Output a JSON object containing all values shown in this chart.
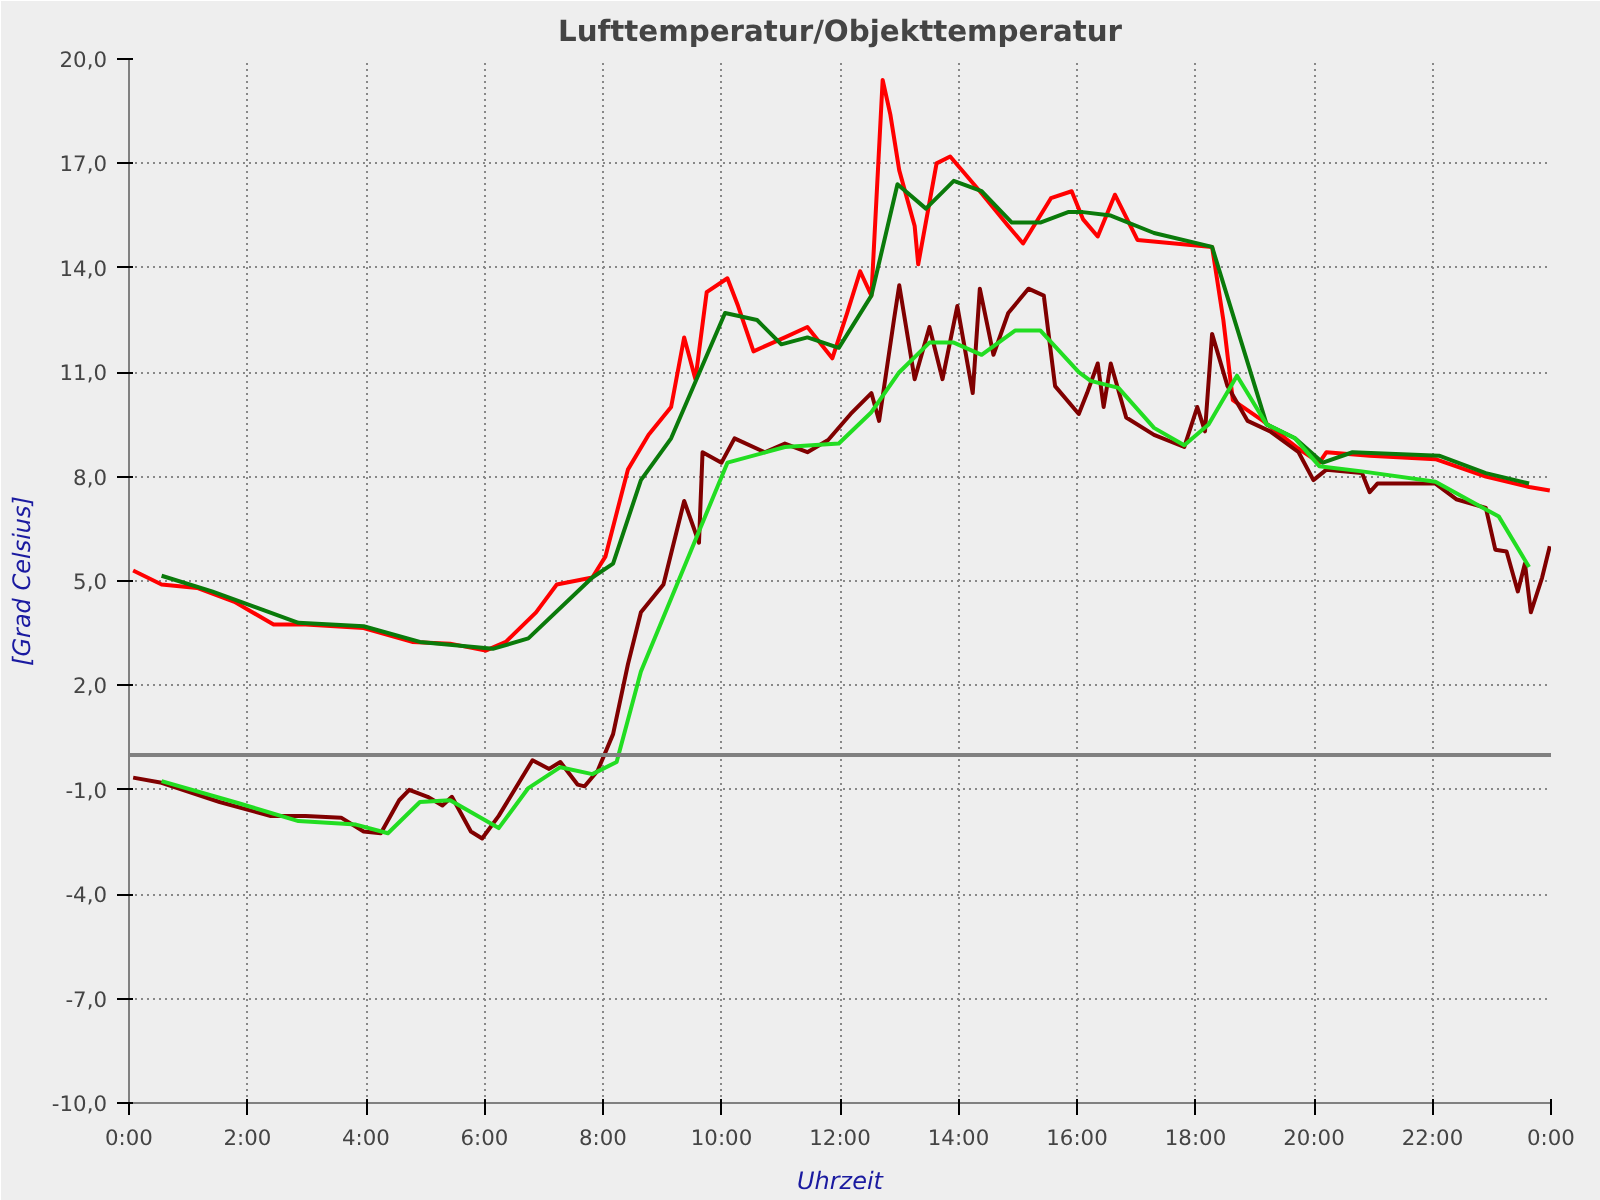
{
  "chart_data": {
    "type": "line",
    "title": "Lufttemperatur/Objekttemperatur",
    "xlabel": "Uhrzeit",
    "ylabel": "[Grad Celsius]",
    "xlim": [
      0,
      24
    ],
    "ylim": [
      -10,
      20
    ],
    "xticks": [
      {
        "value": 0,
        "label": "0:00"
      },
      {
        "value": 2,
        "label": "2:00"
      },
      {
        "value": 4,
        "label": "4:00"
      },
      {
        "value": 6,
        "label": "6:00"
      },
      {
        "value": 8,
        "label": "8:00"
      },
      {
        "value": 10,
        "label": "10:00"
      },
      {
        "value": 12,
        "label": "12:00"
      },
      {
        "value": 14,
        "label": "14:00"
      },
      {
        "value": 16,
        "label": "16:00"
      },
      {
        "value": 18,
        "label": "18:00"
      },
      {
        "value": 20,
        "label": "20:00"
      },
      {
        "value": 22,
        "label": "22:00"
      },
      {
        "value": 24,
        "label": "0:00"
      }
    ],
    "yticks": [
      {
        "value": -10,
        "label": "-10,0"
      },
      {
        "value": -7,
        "label": "-7,0"
      },
      {
        "value": -4,
        "label": "-4,0"
      },
      {
        "value": -1,
        "label": "-1,0"
      },
      {
        "value": 2,
        "label": "2,0"
      },
      {
        "value": 5,
        "label": "5,0"
      },
      {
        "value": 8,
        "label": "8,0"
      },
      {
        "value": 11,
        "label": "11,0"
      },
      {
        "value": 14,
        "label": "14,0"
      },
      {
        "value": 17,
        "label": "17,0"
      },
      {
        "value": 20,
        "label": "20,0"
      }
    ],
    "grid": true,
    "line_style": "solid",
    "ref_lines": [
      {
        "axis": "y",
        "value": 0,
        "label": null,
        "color": "#808080"
      }
    ],
    "series": [
      {
        "color": "#ff0000",
        "x": [
          0.07,
          0.55,
          1.15,
          1.78,
          2.44,
          2.98,
          3.96,
          4.78,
          5.42,
          6.02,
          6.36,
          6.87,
          7.22,
          7.82,
          8.04,
          8.42,
          8.77,
          9.15,
          9.37,
          9.56,
          9.75,
          10.1,
          10.28,
          10.54,
          11.07,
          11.45,
          11.87,
          12.12,
          12.34,
          12.53,
          12.72,
          12.85,
          13.0,
          13.26,
          13.32,
          13.63,
          13.86,
          14.36,
          14.84,
          15.09,
          15.56,
          15.91,
          16.1,
          16.35,
          16.64,
          17.02,
          18.28,
          18.47,
          18.63,
          19.14,
          19.74,
          20.09,
          20.21,
          20.94,
          22.05,
          22.9,
          23.63,
          23.98
        ],
        "values": [
          5.3,
          4.9,
          4.8,
          4.4,
          3.75,
          3.75,
          3.65,
          3.25,
          3.2,
          3.0,
          3.25,
          4.1,
          4.9,
          5.1,
          5.7,
          8.2,
          9.2,
          10.0,
          12.0,
          10.8,
          13.3,
          13.7,
          12.9,
          11.6,
          12.0,
          12.3,
          11.4,
          12.7,
          13.9,
          13.2,
          19.4,
          18.4,
          16.8,
          15.2,
          14.1,
          17.0,
          17.2,
          16.2,
          15.2,
          14.7,
          16.0,
          16.2,
          15.4,
          14.9,
          16.1,
          14.8,
          14.6,
          12.5,
          10.2,
          9.6,
          8.8,
          8.4,
          8.7,
          8.6,
          8.5,
          8.0,
          7.7,
          7.6
        ]
      },
      {
        "color": "#0a7a0a",
        "x": [
          0.55,
          1.4,
          2.86,
          3.96,
          4.91,
          6.14,
          6.74,
          7.82,
          8.17,
          8.64,
          9.15,
          10.06,
          10.6,
          11.01,
          11.45,
          11.98,
          12.53,
          12.97,
          13.45,
          13.92,
          14.39,
          14.9,
          15.38,
          15.85,
          16.1,
          16.57,
          17.3,
          18.28,
          19.2,
          19.68,
          20.15,
          20.65,
          22.11,
          22.9,
          23.63
        ],
        "values": [
          5.15,
          4.7,
          3.8,
          3.7,
          3.25,
          3.05,
          3.35,
          5.1,
          5.5,
          7.9,
          9.1,
          12.7,
          12.5,
          11.8,
          12.0,
          11.7,
          13.2,
          16.4,
          15.7,
          16.5,
          16.2,
          15.3,
          15.3,
          15.6,
          15.6,
          15.5,
          15.0,
          14.6,
          9.5,
          9.1,
          8.4,
          8.7,
          8.6,
          8.1,
          7.8
        ]
      },
      {
        "color": "#800000",
        "x": [
          0.07,
          0.55,
          1.53,
          2.38,
          2.98,
          3.58,
          3.96,
          4.25,
          4.56,
          4.73,
          5.04,
          5.29,
          5.45,
          5.77,
          5.96,
          6.24,
          6.49,
          6.81,
          7.09,
          7.28,
          7.57,
          7.69,
          7.91,
          8.17,
          8.42,
          8.64,
          9.02,
          9.37,
          9.62,
          9.68,
          10.0,
          10.22,
          10.73,
          11.07,
          11.45,
          11.8,
          12.18,
          12.53,
          12.66,
          12.91,
          13.0,
          13.26,
          13.51,
          13.73,
          13.98,
          14.24,
          14.36,
          14.59,
          14.84,
          15.18,
          15.44,
          15.63,
          16.03,
          16.17,
          16.35,
          16.45,
          16.57,
          16.83,
          17.3,
          17.81,
          18.03,
          18.16,
          18.28,
          18.54,
          18.88,
          19.26,
          19.74,
          19.99,
          20.21,
          20.81,
          20.94,
          21.07,
          22.05,
          22.4,
          22.9,
          23.06,
          23.25,
          23.44,
          23.56,
          23.66,
          23.85,
          23.98
        ],
        "values": [
          -0.65,
          -0.8,
          -1.35,
          -1.75,
          -1.75,
          -1.8,
          -2.2,
          -2.25,
          -1.3,
          -1.0,
          -1.2,
          -1.45,
          -1.2,
          -2.2,
          -2.4,
          -1.75,
          -1.05,
          -0.15,
          -0.4,
          -0.2,
          -0.85,
          -0.9,
          -0.45,
          0.6,
          2.6,
          4.1,
          4.9,
          7.3,
          6.1,
          8.7,
          8.4,
          9.1,
          8.7,
          8.95,
          8.7,
          9.05,
          9.8,
          10.4,
          9.6,
          12.5,
          13.5,
          10.8,
          12.3,
          10.8,
          12.9,
          10.4,
          13.4,
          11.5,
          12.7,
          13.4,
          13.2,
          10.6,
          9.8,
          10.4,
          11.25,
          10.0,
          11.25,
          9.7,
          9.2,
          8.85,
          10.0,
          9.3,
          12.1,
          10.6,
          9.6,
          9.3,
          8.7,
          7.9,
          8.2,
          8.1,
          7.55,
          7.8,
          7.8,
          7.35,
          7.1,
          5.9,
          5.85,
          4.7,
          5.5,
          4.1,
          5.1,
          6.0
        ]
      },
      {
        "color": "#22dd22",
        "x": [
          0.55,
          1.88,
          2.86,
          3.83,
          4.37,
          4.91,
          5.42,
          6.24,
          6.74,
          7.28,
          7.82,
          8.23,
          8.64,
          10.1,
          11.07,
          11.98,
          12.53,
          13.0,
          13.51,
          13.92,
          14.39,
          14.96,
          15.38,
          16.03,
          16.23,
          16.7,
          17.3,
          17.81,
          18.22,
          18.7,
          19.2,
          19.68,
          20.09,
          20.81,
          22.05,
          23.12,
          23.63
        ],
        "values": [
          -0.75,
          -1.4,
          -1.9,
          -2.0,
          -2.25,
          -1.35,
          -1.3,
          -2.1,
          -0.95,
          -0.35,
          -0.55,
          -0.2,
          2.4,
          8.4,
          8.85,
          8.95,
          9.85,
          11.0,
          11.85,
          11.85,
          11.5,
          12.2,
          12.2,
          11.0,
          10.75,
          10.55,
          9.4,
          8.9,
          9.5,
          10.9,
          9.5,
          9.1,
          8.3,
          8.15,
          7.85,
          6.85,
          5.4
        ]
      }
    ]
  }
}
